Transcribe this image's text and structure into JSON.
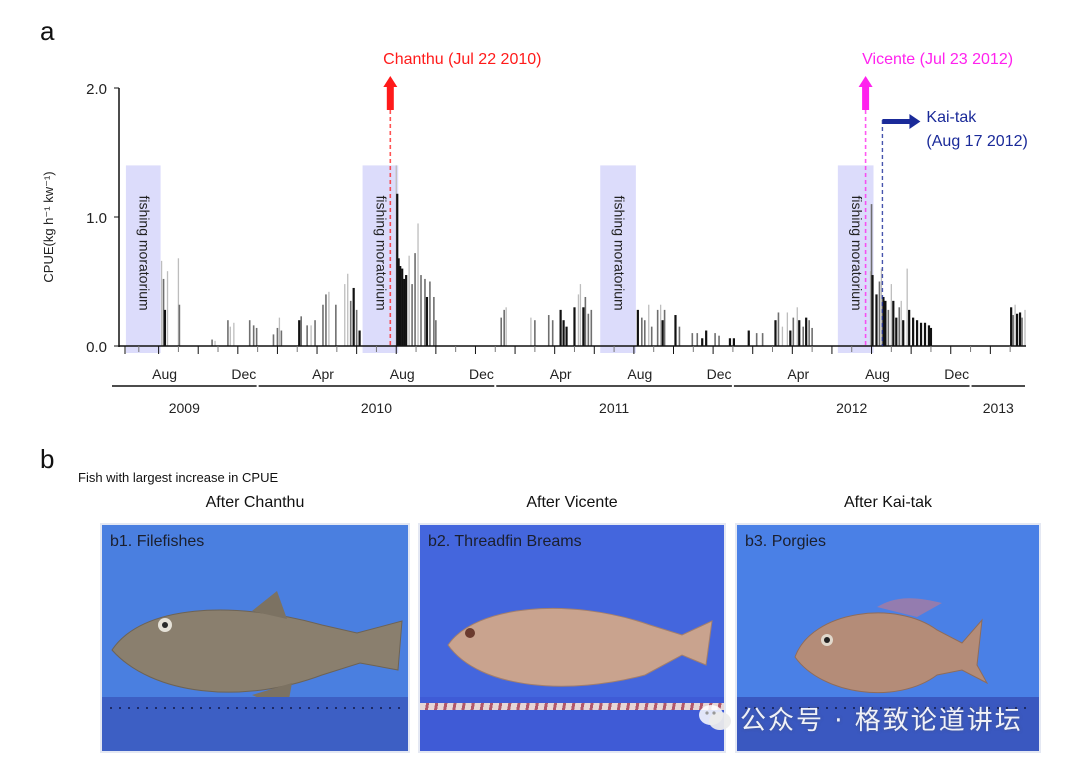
{
  "panel_a": {
    "letter": "a"
  },
  "panel_b": {
    "letter": "b",
    "subtitle": "Fish with largest increase in CPUE",
    "columns": [
      {
        "title": "After Chanthu",
        "label": "b1. Filefishes",
        "background": "#4a7fe0",
        "fish_color": "#8a7f6e"
      },
      {
        "title": "After Vicente",
        "label": "b2. Threadfin Breams",
        "background": "#4466dd",
        "fish_color": "#c9a38e"
      },
      {
        "title": "After Kai-tak",
        "label": "b3. Porgies",
        "background": "#4a80e6",
        "fish_color": "#b48c78"
      }
    ]
  },
  "watermark": {
    "icon": "wechat-icon",
    "text": "公众号 · 格致论道讲坛"
  },
  "chart_data": {
    "type": "bar",
    "title": "",
    "xlabel": "",
    "ylabel": "CPUE(kg h⁻¹ kw⁻¹)",
    "ylim": [
      0,
      2.0
    ],
    "yticks": [
      "0.0",
      "1.0",
      "2.0"
    ],
    "x_unit": "months since Jun 2009",
    "xlim": [
      0,
      45.8
    ],
    "month_tick_labels": [
      {
        "label": "Aug",
        "month": 2
      },
      {
        "label": "Dec",
        "month": 6
      },
      {
        "label": "Apr",
        "month": 10
      },
      {
        "label": "Aug",
        "month": 14
      },
      {
        "label": "Dec",
        "month": 18
      },
      {
        "label": "Apr",
        "month": 22
      },
      {
        "label": "Aug",
        "month": 26
      },
      {
        "label": "Dec",
        "month": 30
      },
      {
        "label": "Apr",
        "month": 34
      },
      {
        "label": "Aug",
        "month": 38
      },
      {
        "label": "Dec",
        "month": 42
      }
    ],
    "year_spans": [
      {
        "label": "2009",
        "start": 0,
        "end": 7
      },
      {
        "label": "2010",
        "start": 7,
        "end": 19
      },
      {
        "label": "2011",
        "start": 19,
        "end": 31
      },
      {
        "label": "2012",
        "start": 31,
        "end": 43
      },
      {
        "label": "2013",
        "start": 43,
        "end": 45.8
      }
    ],
    "moratoria": [
      {
        "label": "fishing moratorium",
        "start": 0.35,
        "end": 2.1
      },
      {
        "label": "fishing moratorium",
        "start": 12.3,
        "end": 14.1
      },
      {
        "label": "fishing moratorium",
        "start": 24.3,
        "end": 26.1
      },
      {
        "label": "fishing moratorium",
        "start": 36.3,
        "end": 38.1
      }
    ],
    "events": [
      {
        "name": "Chanthu",
        "label": "Chanthu (Jul 22 2010)",
        "month": 13.7,
        "color": "#ff1a1a",
        "arrow": "up"
      },
      {
        "name": "Vicente",
        "label": "Vicente (Jul 23 2012)",
        "month": 37.7,
        "color": "#ff22ee",
        "arrow": "up"
      },
      {
        "name": "Kai-tak",
        "label": "Kai-tak\n(Aug 17 2012)",
        "label_line1": "Kai-tak",
        "label_line2": "(Aug 17 2012)",
        "month": 38.55,
        "color": "#1a2a99",
        "arrow": "right"
      }
    ],
    "series": [
      {
        "name": "CPUE",
        "bars": [
          [
            2.15,
            0.66,
            "l"
          ],
          [
            2.25,
            0.52,
            "m"
          ],
          [
            2.32,
            0.28,
            "d"
          ],
          [
            2.45,
            0.58,
            "l"
          ],
          [
            3.0,
            0.68,
            "l"
          ],
          [
            3.05,
            0.32,
            "m"
          ],
          [
            4.7,
            0.05,
            "m"
          ],
          [
            4.85,
            0.04,
            "l"
          ],
          [
            5.5,
            0.2,
            "m"
          ],
          [
            5.62,
            0.15,
            "l"
          ],
          [
            5.8,
            0.18,
            "l"
          ],
          [
            6.6,
            0.2,
            "m"
          ],
          [
            6.8,
            0.16,
            "m"
          ],
          [
            6.95,
            0.14,
            "m"
          ],
          [
            7.8,
            0.09,
            "m"
          ],
          [
            8.0,
            0.14,
            "m"
          ],
          [
            8.1,
            0.22,
            "l"
          ],
          [
            8.2,
            0.12,
            "m"
          ],
          [
            9.1,
            0.2,
            "d"
          ],
          [
            9.2,
            0.23,
            "m"
          ],
          [
            9.5,
            0.16,
            "m"
          ],
          [
            9.7,
            0.16,
            "l"
          ],
          [
            9.9,
            0.2,
            "m"
          ],
          [
            10.3,
            0.32,
            "m"
          ],
          [
            10.45,
            0.4,
            "m"
          ],
          [
            10.6,
            0.42,
            "l"
          ],
          [
            10.95,
            0.32,
            "m"
          ],
          [
            11.4,
            0.48,
            "l"
          ],
          [
            11.55,
            0.56,
            "l"
          ],
          [
            11.7,
            0.35,
            "m"
          ],
          [
            11.85,
            0.45,
            "d"
          ],
          [
            12.0,
            0.28,
            "m"
          ],
          [
            12.15,
            0.12,
            "d"
          ],
          [
            14.0,
            1.4,
            "l"
          ],
          [
            14.05,
            1.18,
            "d"
          ],
          [
            14.12,
            0.68,
            "d"
          ],
          [
            14.2,
            0.62,
            "d"
          ],
          [
            14.3,
            0.6,
            "d"
          ],
          [
            14.4,
            0.52,
            "d"
          ],
          [
            14.5,
            0.55,
            "d"
          ],
          [
            14.65,
            0.7,
            "l"
          ],
          [
            14.8,
            0.48,
            "m"
          ],
          [
            14.95,
            0.72,
            "m"
          ],
          [
            15.1,
            0.95,
            "l"
          ],
          [
            15.25,
            0.55,
            "m"
          ],
          [
            15.45,
            0.52,
            "m"
          ],
          [
            15.55,
            0.38,
            "d"
          ],
          [
            15.7,
            0.5,
            "m"
          ],
          [
            15.9,
            0.38,
            "m"
          ],
          [
            16.0,
            0.2,
            "m"
          ],
          [
            19.3,
            0.22,
            "m"
          ],
          [
            19.45,
            0.28,
            "m"
          ],
          [
            19.55,
            0.3,
            "l"
          ],
          [
            20.8,
            0.22,
            "l"
          ],
          [
            21.0,
            0.2,
            "m"
          ],
          [
            21.7,
            0.24,
            "m"
          ],
          [
            21.9,
            0.2,
            "m"
          ],
          [
            22.3,
            0.28,
            "d"
          ],
          [
            22.45,
            0.2,
            "d"
          ],
          [
            22.6,
            0.15,
            "d"
          ],
          [
            23.0,
            0.3,
            "d"
          ],
          [
            23.2,
            0.4,
            "l"
          ],
          [
            23.3,
            0.48,
            "l"
          ],
          [
            23.45,
            0.3,
            "d"
          ],
          [
            23.55,
            0.38,
            "m"
          ],
          [
            23.7,
            0.25,
            "m"
          ],
          [
            23.85,
            0.28,
            "m"
          ],
          [
            26.2,
            0.28,
            "d"
          ],
          [
            26.4,
            0.22,
            "m"
          ],
          [
            26.55,
            0.2,
            "m"
          ],
          [
            26.75,
            0.32,
            "l"
          ],
          [
            26.9,
            0.15,
            "m"
          ],
          [
            27.2,
            0.28,
            "m"
          ],
          [
            27.35,
            0.32,
            "l"
          ],
          [
            27.45,
            0.2,
            "d"
          ],
          [
            27.55,
            0.28,
            "m"
          ],
          [
            28.1,
            0.24,
            "d"
          ],
          [
            28.3,
            0.15,
            "m"
          ],
          [
            28.95,
            0.1,
            "m"
          ],
          [
            29.2,
            0.1,
            "m"
          ],
          [
            29.45,
            0.06,
            "d"
          ],
          [
            29.65,
            0.12,
            "d"
          ],
          [
            30.1,
            0.1,
            "m"
          ],
          [
            30.3,
            0.08,
            "m"
          ],
          [
            30.85,
            0.06,
            "d"
          ],
          [
            31.05,
            0.06,
            "d"
          ],
          [
            31.8,
            0.12,
            "d"
          ],
          [
            32.2,
            0.1,
            "m"
          ],
          [
            32.5,
            0.1,
            "m"
          ],
          [
            33.15,
            0.2,
            "d"
          ],
          [
            33.3,
            0.26,
            "m"
          ],
          [
            33.5,
            0.15,
            "l"
          ],
          [
            33.75,
            0.26,
            "l"
          ],
          [
            33.9,
            0.12,
            "d"
          ],
          [
            34.05,
            0.22,
            "m"
          ],
          [
            34.25,
            0.3,
            "l"
          ],
          [
            34.35,
            0.2,
            "d"
          ],
          [
            34.55,
            0.15,
            "m"
          ],
          [
            34.7,
            0.22,
            "d"
          ],
          [
            34.85,
            0.2,
            "m"
          ],
          [
            35.0,
            0.14,
            "m"
          ],
          [
            37.95,
            0.58,
            "l"
          ],
          [
            38.0,
            1.1,
            "m"
          ],
          [
            38.05,
            0.55,
            "d"
          ],
          [
            38.25,
            0.4,
            "d"
          ],
          [
            38.4,
            0.5,
            "m"
          ],
          [
            38.5,
            0.6,
            "l"
          ],
          [
            38.6,
            0.38,
            "d"
          ],
          [
            38.7,
            0.35,
            "d"
          ],
          [
            38.85,
            0.28,
            "m"
          ],
          [
            39.0,
            0.48,
            "l"
          ],
          [
            39.1,
            0.35,
            "d"
          ],
          [
            39.25,
            0.22,
            "d"
          ],
          [
            39.4,
            0.3,
            "m"
          ],
          [
            39.5,
            0.35,
            "l"
          ],
          [
            39.6,
            0.2,
            "d"
          ],
          [
            39.8,
            0.6,
            "l"
          ],
          [
            39.9,
            0.28,
            "d"
          ],
          [
            40.1,
            0.22,
            "d"
          ],
          [
            40.3,
            0.2,
            "d"
          ],
          [
            40.5,
            0.18,
            "d"
          ],
          [
            40.7,
            0.18,
            "d"
          ],
          [
            40.9,
            0.16,
            "d"
          ],
          [
            41.0,
            0.14,
            "d"
          ],
          [
            45.05,
            0.3,
            "d"
          ],
          [
            45.15,
            0.24,
            "m"
          ],
          [
            45.25,
            0.32,
            "l"
          ],
          [
            45.35,
            0.25,
            "d"
          ],
          [
            45.5,
            0.26,
            "d"
          ],
          [
            45.6,
            0.22,
            "m"
          ],
          [
            45.75,
            0.28,
            "l"
          ]
        ]
      }
    ]
  }
}
